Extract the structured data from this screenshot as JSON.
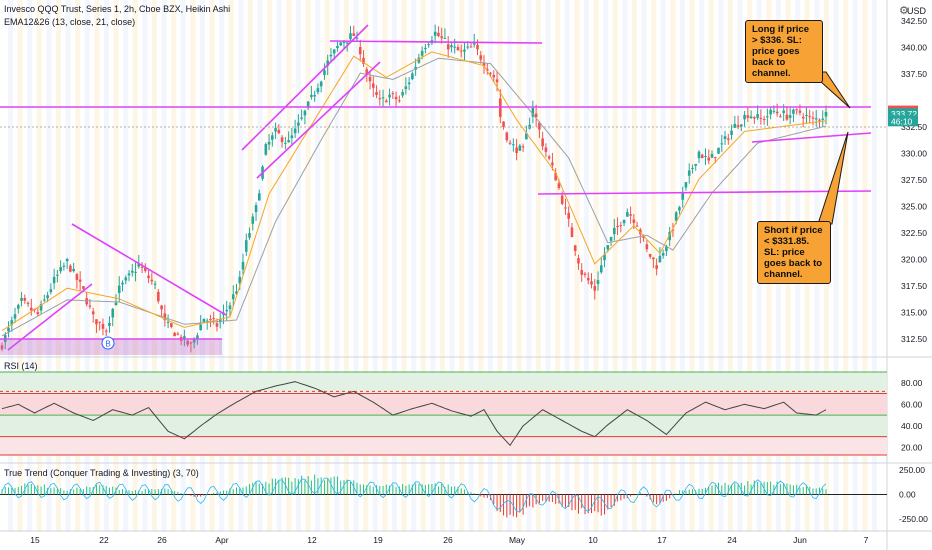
{
  "header": {
    "title": "Invesco QQQ Trust, Series 1, 2h, Cboe BZX, Heikin Ashi",
    "indicator": "EMA12&26 (13, close, 21, close)",
    "currency": "USD"
  },
  "colors": {
    "up": "#26a69a",
    "down": "#ef5350",
    "ema_fast": "#f5a623",
    "ema_slow": "#9aa0a6",
    "trendline": "#e040fb",
    "callout": "#f7a234",
    "rsi_line": "#444444",
    "tt_green": "#26c281",
    "tt_red": "#e53935",
    "tt_blue": "#29b6f6"
  },
  "icons": [
    "gear-icon",
    "b-marker-icon"
  ],
  "chart_data": [
    {
      "type": "candlestick",
      "title": "Invesco QQQ Trust, Series 1, 2h, Cboe BZX, Heikin Ashi",
      "x_ticks": [
        "15",
        "22",
        "26",
        "Apr",
        "12",
        "19",
        "26",
        "May",
        "10",
        "17",
        "24",
        "Jun",
        "7"
      ],
      "y_ticks": [
        "342.50",
        "340.00",
        "337.50",
        "335.00",
        "332.50",
        "330.00",
        "327.50",
        "325.00",
        "322.50",
        "320.00",
        "317.50",
        "315.00",
        "312.50"
      ],
      "ylim": [
        311,
        344.5
      ],
      "price_badges": [
        {
          "label": "333.97",
          "value": 333.97,
          "color": "#ef5350"
        },
        {
          "label": "333.72",
          "value": 333.72,
          "color": "#26a69a"
        },
        {
          "label": "46:10",
          "value": 333.05,
          "color": "#26a69a"
        }
      ],
      "close_path": [
        [
          0,
          312.0
        ],
        [
          6,
          316.0
        ],
        [
          11,
          314.8
        ],
        [
          16,
          318.0
        ],
        [
          20,
          319.8
        ],
        [
          25,
          317.0
        ],
        [
          28,
          314.5
        ],
        [
          32,
          313.5
        ],
        [
          36,
          317.2
        ],
        [
          42,
          319.5
        ],
        [
          47,
          317.5
        ],
        [
          50,
          314.0
        ],
        [
          55,
          312.6
        ],
        [
          58,
          311.8
        ],
        [
          62,
          314.5
        ],
        [
          66,
          313.8
        ],
        [
          70,
          315.8
        ],
        [
          73,
          318.0
        ],
        [
          75,
          321.5
        ],
        [
          78,
          324.8
        ],
        [
          81,
          330.5
        ],
        [
          84,
          332.0
        ],
        [
          88,
          331.0
        ],
        [
          92,
          333.2
        ],
        [
          96,
          335.8
        ],
        [
          100,
          338.6
        ],
        [
          104,
          340.5
        ],
        [
          108,
          341.2
        ],
        [
          110,
          339.8
        ],
        [
          113,
          336.5
        ],
        [
          116,
          334.8
        ],
        [
          119,
          335.5
        ],
        [
          122,
          335.0
        ],
        [
          126,
          337.5
        ],
        [
          129,
          340.0
        ],
        [
          133,
          341.4
        ],
        [
          137,
          340.2
        ],
        [
          141,
          339.5
        ],
        [
          145,
          340.1
        ],
        [
          149,
          338.2
        ],
        [
          152,
          336.8
        ],
        [
          153,
          333.5
        ],
        [
          156,
          330.8
        ],
        [
          160,
          330.2
        ],
        [
          163,
          334.5
        ],
        [
          166,
          331.0
        ],
        [
          170,
          327.8
        ],
        [
          174,
          323.5
        ],
        [
          178,
          318.8
        ],
        [
          182,
          317.2
        ],
        [
          185,
          320.5
        ],
        [
          188,
          322.6
        ],
        [
          192,
          324.6
        ],
        [
          195,
          323.5
        ],
        [
          198,
          320.8
        ],
        [
          201,
          319.5
        ],
        [
          205,
          322.2
        ],
        [
          208,
          325.0
        ],
        [
          211,
          328.0
        ],
        [
          214,
          330.2
        ],
        [
          217,
          329.2
        ],
        [
          221,
          330.8
        ],
        [
          225,
          332.6
        ],
        [
          229,
          333.8
        ],
        [
          233,
          333.2
        ],
        [
          237,
          334.0
        ],
        [
          241,
          333.6
        ],
        [
          245,
          333.9
        ],
        [
          249,
          333.1
        ],
        [
          253,
          333.72
        ]
      ],
      "ema_fast_path": [
        [
          0,
          313.3
        ],
        [
          20,
          317.3
        ],
        [
          36,
          316.3
        ],
        [
          56,
          313.6
        ],
        [
          70,
          314.6
        ],
        [
          82,
          326.2
        ],
        [
          96,
          333.2
        ],
        [
          108,
          339.2
        ],
        [
          118,
          337.2
        ],
        [
          132,
          339.6
        ],
        [
          148,
          338.3
        ],
        [
          158,
          333.2
        ],
        [
          170,
          328.2
        ],
        [
          182,
          319.6
        ],
        [
          194,
          323.2
        ],
        [
          202,
          320.6
        ],
        [
          214,
          327.6
        ],
        [
          228,
          332.1
        ],
        [
          253,
          333.1
        ]
      ],
      "ema_slow_path": [
        [
          0,
          312.8
        ],
        [
          20,
          316.2
        ],
        [
          36,
          316.0
        ],
        [
          56,
          313.9
        ],
        [
          72,
          314.3
        ],
        [
          84,
          323.6
        ],
        [
          98,
          331.3
        ],
        [
          110,
          337.6
        ],
        [
          120,
          337.0
        ],
        [
          134,
          339.0
        ],
        [
          150,
          338.5
        ],
        [
          162,
          334.1
        ],
        [
          174,
          329.6
        ],
        [
          186,
          321.6
        ],
        [
          198,
          322.3
        ],
        [
          206,
          320.9
        ],
        [
          218,
          326.3
        ],
        [
          232,
          331.0
        ],
        [
          253,
          332.6
        ]
      ],
      "annotations": [
        {
          "text": "Long if price > $336. SL: price goes back to channel."
        },
        {
          "text": "Short if price < $331.85. SL: price goes back to channel."
        }
      ]
    },
    {
      "type": "line",
      "title": "RSI (14)",
      "y_ticks": [
        "80.00",
        "60.00",
        "40.00",
        "20.00"
      ],
      "ylim": [
        13,
        90
      ],
      "bands": [
        70,
        50,
        30
      ],
      "series": [
        {
          "values_path": [
            [
              0,
              56
            ],
            [
              5,
              60
            ],
            [
              10,
              52
            ],
            [
              16,
              61
            ],
            [
              22,
              52
            ],
            [
              28,
              45
            ],
            [
              34,
              55
            ],
            [
              40,
              50
            ],
            [
              45,
              57
            ],
            [
              51,
              35
            ],
            [
              56,
              28
            ],
            [
              61,
              40
            ],
            [
              66,
              51
            ],
            [
              72,
              62
            ],
            [
              78,
              72
            ],
            [
              84,
              77
            ],
            [
              90,
              81
            ],
            [
              96,
              75
            ],
            [
              102,
              67
            ],
            [
              108,
              72
            ],
            [
              114,
              62
            ],
            [
              120,
              50
            ],
            [
              126,
              56
            ],
            [
              132,
              61
            ],
            [
              138,
              54
            ],
            [
              144,
              49
            ],
            [
              148,
              55
            ],
            [
              152,
              35
            ],
            [
              156,
              22
            ],
            [
              160,
              40
            ],
            [
              166,
              55
            ],
            [
              172,
              45
            ],
            [
              178,
              35
            ],
            [
              182,
              30
            ],
            [
              186,
              41
            ],
            [
              192,
              55
            ],
            [
              198,
              45
            ],
            [
              204,
              32
            ],
            [
              210,
              52
            ],
            [
              216,
              62
            ],
            [
              222,
              55
            ],
            [
              228,
              60
            ],
            [
              234,
              56
            ],
            [
              240,
              62
            ],
            [
              244,
              52
            ],
            [
              250,
              50
            ],
            [
              253,
              55
            ]
          ]
        }
      ]
    },
    {
      "type": "bar",
      "title": "True Trend (Conquer Trading & Investing) (3, 70)",
      "y_ticks": [
        "250.00",
        "0.00",
        "-250.00"
      ],
      "ylim": [
        -330,
        330
      ],
      "bars_path": [
        [
          0,
          70
        ],
        [
          10,
          110
        ],
        [
          20,
          45
        ],
        [
          30,
          95
        ],
        [
          40,
          40
        ],
        [
          50,
          60
        ],
        [
          60,
          -30
        ],
        [
          70,
          60
        ],
        [
          80,
          140
        ],
        [
          90,
          160
        ],
        [
          100,
          190
        ],
        [
          110,
          110
        ],
        [
          120,
          90
        ],
        [
          130,
          120
        ],
        [
          140,
          80
        ],
        [
          150,
          -60
        ],
        [
          155,
          -280
        ],
        [
          160,
          -180
        ],
        [
          166,
          -60
        ],
        [
          172,
          -120
        ],
        [
          178,
          -180
        ],
        [
          184,
          -200
        ],
        [
          190,
          -60
        ],
        [
          196,
          20
        ],
        [
          202,
          -120
        ],
        [
          208,
          40
        ],
        [
          214,
          60
        ],
        [
          220,
          110
        ],
        [
          226,
          100
        ],
        [
          232,
          140
        ],
        [
          238,
          120
        ],
        [
          246,
          80
        ],
        [
          253,
          60
        ]
      ]
    }
  ]
}
